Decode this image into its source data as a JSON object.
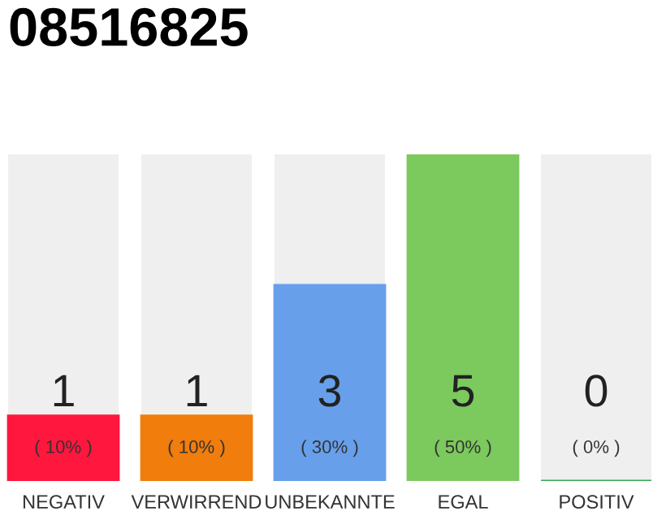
{
  "chart_data": {
    "type": "bar",
    "title": "08516825",
    "categories": [
      "NEGATIV",
      "VERWIRREND",
      "UNBEKANNTE",
      "EGAL",
      "POSITIV"
    ],
    "values": [
      1,
      1,
      3,
      5,
      0
    ],
    "colors": [
      "#ff173d",
      "#f07d0c",
      "#679feb",
      "#7cc95e",
      "#33a852"
    ],
    "value_labels": [
      "1",
      "1",
      "3",
      "5",
      "0"
    ],
    "annotations": [
      "( 10% )",
      "( 10% )",
      "( 30% )",
      "( 50% )",
      "( 0% )"
    ],
    "grid": false,
    "legend": false
  }
}
